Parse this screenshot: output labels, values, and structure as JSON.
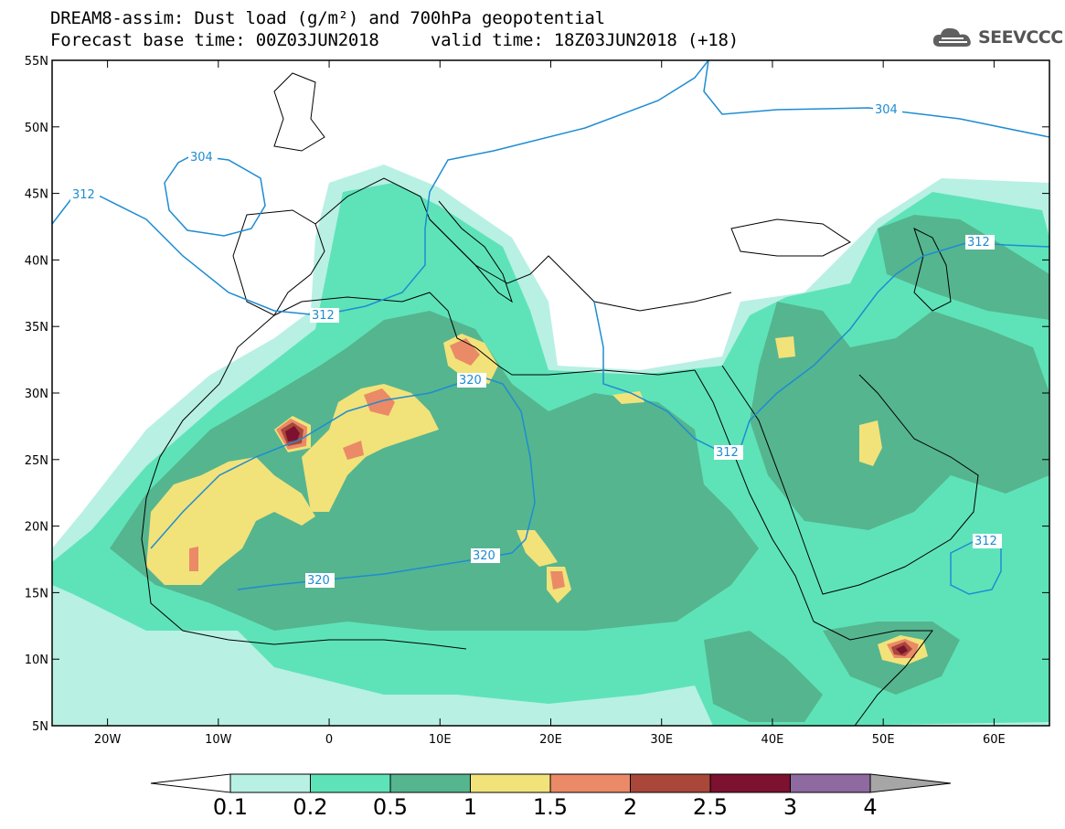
{
  "title": {
    "line1": "DREAM8-assim: Dust load (g/m²) and 700hPa geopotential",
    "line2": "Forecast base time: 00Z03JUN2018     valid time: 18Z03JUN2018 (+18)"
  },
  "logo": {
    "text": "SEEVCCC",
    "icon": "cloud-icon"
  },
  "map": {
    "lon_range": [
      -25,
      65
    ],
    "lat_range": [
      5,
      55
    ],
    "lon_ticks": [
      "20W",
      "10W",
      "0",
      "10E",
      "20E",
      "30E",
      "40E",
      "50E",
      "60E"
    ],
    "lat_ticks": [
      "5N",
      "10N",
      "15N",
      "20N",
      "25N",
      "30N",
      "35N",
      "40N",
      "45N",
      "50N",
      "55N"
    ]
  },
  "colorbar": {
    "levels": [
      "0.1",
      "0.2",
      "0.5",
      "1",
      "1.5",
      "2",
      "2.5",
      "3",
      "4"
    ],
    "colors": [
      "#b8f0e4",
      "#5ee3b8",
      "#55b58f",
      "#f2e27a",
      "#ea8a67",
      "#a8473a",
      "#7c1130",
      "#8e6aa0",
      "#a6a6a6"
    ]
  },
  "isolines": {
    "color": "#1e8cd2",
    "labels": [
      "304",
      "312",
      "312",
      "320",
      "320",
      "320",
      "312",
      "304",
      "312",
      "312"
    ]
  }
}
